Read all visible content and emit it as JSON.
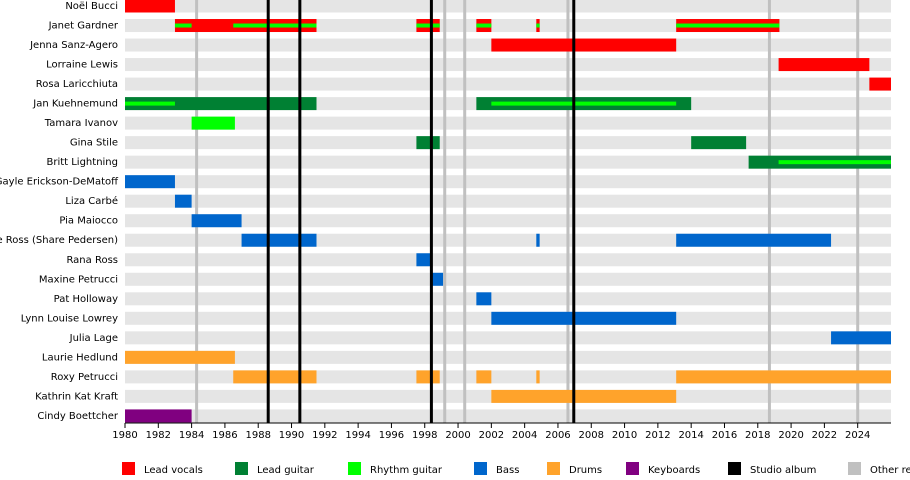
{
  "chart_data": {
    "type": "timeline",
    "xlim": [
      1980,
      2026
    ],
    "xticks": [
      1980,
      1982,
      1984,
      1986,
      1988,
      1990,
      1992,
      1994,
      1996,
      1998,
      2000,
      2002,
      2004,
      2006,
      2008,
      2010,
      2012,
      2014,
      2016,
      2018,
      2020,
      2022,
      2024
    ],
    "roles": [
      {
        "name": "Lead vocals",
        "color": "#ff0000"
      },
      {
        "name": "Lead guitar",
        "color": "#008033"
      },
      {
        "name": "Rhythm guitar",
        "color": "#00ff00"
      },
      {
        "name": "Bass",
        "color": "#0066cc"
      },
      {
        "name": "Drums",
        "color": "#ffa32b"
      },
      {
        "name": "Keyboards",
        "color": "#800080"
      }
    ],
    "markers": [
      {
        "name": "Studio album",
        "color": "#000000",
        "values": [
          1988.6,
          1990.5,
          1998.4,
          2006.95
        ]
      },
      {
        "name": "Other releases",
        "color": "#c0c0c0",
        "values": [
          1984.3,
          1999.2,
          2000.4,
          2006.6,
          2018.7,
          2024
        ]
      }
    ],
    "members": [
      {
        "name": "Noël Bucci",
        "periods": [
          {
            "role": "Lead vocals",
            "start": 1980,
            "end": 1983
          }
        ]
      },
      {
        "name": "Janet Gardner",
        "periods": [
          {
            "role": "Lead vocals",
            "start": 1983,
            "end": 1991.5
          },
          {
            "role": "Rhythm guitar",
            "start": 1983,
            "end": 1984
          },
          {
            "role": "Rhythm guitar",
            "start": 1986.5,
            "end": 1991.5
          },
          {
            "role": "Lead vocals",
            "start": 1997.5,
            "end": 1998.9
          },
          {
            "role": "Rhythm guitar",
            "start": 1997.5,
            "end": 1998.9
          },
          {
            "role": "Lead vocals",
            "start": 2001.1,
            "end": 2002
          },
          {
            "role": "Rhythm guitar",
            "start": 2001.1,
            "end": 2002
          },
          {
            "role": "Lead vocals",
            "start": 2004.7,
            "end": 2004.9
          },
          {
            "role": "Rhythm guitar",
            "start": 2004.7,
            "end": 2004.9
          },
          {
            "role": "Lead vocals",
            "start": 2013.1,
            "end": 2019.3
          },
          {
            "role": "Rhythm guitar",
            "start": 2013.1,
            "end": 2019.3
          }
        ]
      },
      {
        "name": "Jenna Sanz-Agero",
        "periods": [
          {
            "role": "Lead vocals",
            "start": 2002,
            "end": 2013.1
          }
        ]
      },
      {
        "name": "Lorraine Lewis",
        "periods": [
          {
            "role": "Lead vocals",
            "start": 2019.25,
            "end": 2024.7
          }
        ]
      },
      {
        "name": "Rosa Laricchiuta",
        "periods": [
          {
            "role": "Lead vocals",
            "start": 2024.7,
            "end": 2026
          }
        ]
      },
      {
        "name": "Jan Kuehnemund",
        "periods": [
          {
            "role": "Lead guitar",
            "start": 1980,
            "end": 1991.5
          },
          {
            "role": "Rhythm guitar",
            "start": 1980,
            "end": 1983
          },
          {
            "role": "Lead guitar",
            "start": 2001.1,
            "end": 2014
          },
          {
            "role": "Rhythm guitar",
            "start": 2002,
            "end": 2013.1
          }
        ]
      },
      {
        "name": "Tamara Ivanov",
        "periods": [
          {
            "role": "Rhythm guitar",
            "start": 1984,
            "end": 1986.6
          }
        ]
      },
      {
        "name": "Gina Stile",
        "periods": [
          {
            "role": "Lead guitar",
            "start": 1997.5,
            "end": 1998.9
          },
          {
            "role": "Lead guitar",
            "start": 2014,
            "end": 2017.3
          }
        ]
      },
      {
        "name": "Britt Lightning",
        "periods": [
          {
            "role": "Lead guitar",
            "start": 2017.45,
            "end": 2026
          },
          {
            "role": "Rhythm guitar",
            "start": 2019.25,
            "end": 2026
          }
        ]
      },
      {
        "name": "Gayle Erickson-DeMatoff",
        "periods": [
          {
            "role": "Bass",
            "start": 1980,
            "end": 1983
          }
        ]
      },
      {
        "name": "Liza Carbé",
        "periods": [
          {
            "role": "Bass",
            "start": 1983,
            "end": 1984
          }
        ]
      },
      {
        "name": "Pia Maiocco",
        "periods": [
          {
            "role": "Bass",
            "start": 1984,
            "end": 1987
          }
        ]
      },
      {
        "name": "Share Ross (Share Pedersen)",
        "periods": [
          {
            "role": "Bass",
            "start": 1987,
            "end": 1991.5
          },
          {
            "role": "Bass",
            "start": 2004.7,
            "end": 2004.9
          },
          {
            "role": "Bass",
            "start": 2013.1,
            "end": 2022.4
          }
        ]
      },
      {
        "name": "Rana Ross",
        "periods": [
          {
            "role": "Bass",
            "start": 1997.5,
            "end": 1998.4
          }
        ]
      },
      {
        "name": "Maxine Petrucci",
        "periods": [
          {
            "role": "Bass",
            "start": 1998.4,
            "end": 1999.1
          }
        ]
      },
      {
        "name": "Pat Holloway",
        "periods": [
          {
            "role": "Bass",
            "start": 2001.1,
            "end": 2002
          }
        ]
      },
      {
        "name": "Lynn Louise Lowrey",
        "periods": [
          {
            "role": "Bass",
            "start": 2002,
            "end": 2013.1
          }
        ]
      },
      {
        "name": "Julia Lage",
        "periods": [
          {
            "role": "Bass",
            "start": 2022.4,
            "end": 2026
          }
        ]
      },
      {
        "name": "Laurie Hedlund",
        "periods": [
          {
            "role": "Drums",
            "start": 1980,
            "end": 1986.6
          }
        ]
      },
      {
        "name": "Roxy Petrucci",
        "periods": [
          {
            "role": "Drums",
            "start": 1986.5,
            "end": 1991.5
          },
          {
            "role": "Drums",
            "start": 1997.5,
            "end": 1998.9
          },
          {
            "role": "Drums",
            "start": 2001.1,
            "end": 2002
          },
          {
            "role": "Drums",
            "start": 2004.7,
            "end": 2004.9
          },
          {
            "role": "Drums",
            "start": 2013.1,
            "end": 2026
          }
        ]
      },
      {
        "name": "Kathrin Kat Kraft",
        "periods": [
          {
            "role": "Drums",
            "start": 2002,
            "end": 2013.1
          }
        ]
      },
      {
        "name": "Cindy Boettcher",
        "periods": [
          {
            "role": "Keyboards",
            "start": 1980,
            "end": 1984
          }
        ]
      }
    ]
  }
}
